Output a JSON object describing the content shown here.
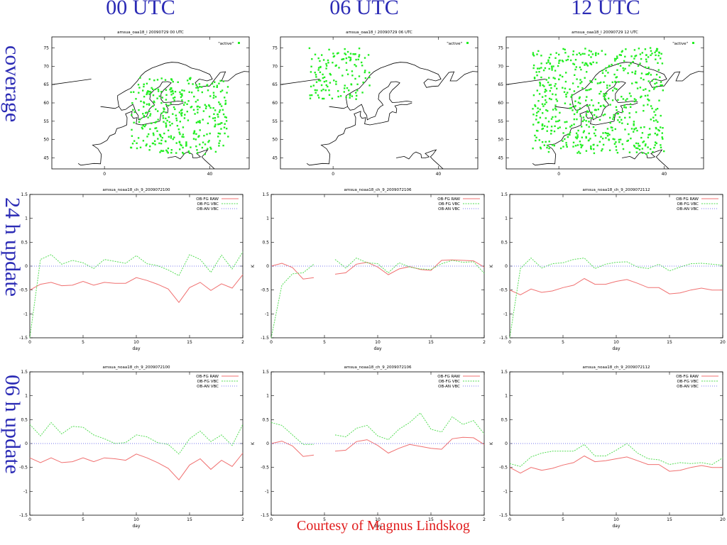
{
  "columns": [
    "00 UTC",
    "06 UTC",
    "12 UTC"
  ],
  "rows": [
    "coverage",
    "24 h update",
    "06 h update"
  ],
  "credit": "Courtesy of Magnus Lindskog",
  "colors": {
    "heading": "#2b2bb5",
    "credit": "#e01b1b",
    "raw": "#f07070",
    "vbc": "#55dd55",
    "an": "#7777ee",
    "coast": "#000000",
    "points": "#22ee22"
  },
  "chart_data": [
    {
      "type": "scatter",
      "title": "amsua_oaa18_l 20090729 00 UTC",
      "legend": "\"active\"",
      "legend_position": "top-right",
      "xticks": [
        "0",
        "40"
      ],
      "yticks": [
        "45",
        "50",
        "55",
        "60",
        "65",
        "70",
        "75"
      ],
      "xlim": [
        -20,
        55
      ],
      "ylim": [
        42,
        78
      ],
      "region": {
        "lon": [
          10,
          47
        ],
        "lat": [
          46,
          67
        ]
      },
      "n_points": 360
    },
    {
      "type": "scatter",
      "title": "amsua_oaa18_l 20090729 06 UTC",
      "legend": "\"active\"",
      "legend_position": "top-right",
      "xticks": [
        "0",
        "40"
      ],
      "yticks": [
        "45",
        "50",
        "55",
        "60",
        "65",
        "70",
        "75"
      ],
      "xlim": [
        -20,
        55
      ],
      "ylim": [
        42,
        78
      ],
      "region": {
        "lon": [
          -9,
          14
        ],
        "lat": [
          61,
          75
        ]
      },
      "n_points": 130
    },
    {
      "type": "scatter",
      "title": "amsua_oaa18_l 20090729 12 UTC",
      "legend": "\"active\"",
      "legend_position": "top-right",
      "xticks": [
        "0",
        "40"
      ],
      "yticks": [
        "45",
        "50",
        "55",
        "60",
        "65",
        "70",
        "75"
      ],
      "xlim": [
        -20,
        55
      ],
      "ylim": [
        42,
        78
      ],
      "region": {
        "lon": [
          -10,
          40
        ],
        "lat": [
          46,
          75
        ]
      },
      "n_points": 620
    },
    {
      "type": "line",
      "title": "amsua_noaa18_ch_9_2009072100",
      "xlabel": "day",
      "ylabel": "",
      "xlim": [
        0,
        20
      ],
      "ylim": [
        -1.5,
        1.5
      ],
      "xticks": [
        "0",
        "5",
        "10",
        "15",
        "2"
      ],
      "yticks": [
        "1.5",
        "1",
        "0.5",
        "0",
        "-0.5",
        "-1",
        "-1.5"
      ],
      "legend_position": "top-right",
      "series": [
        {
          "name": "OB-FG RAW",
          "x": [
            0,
            1,
            2,
            3,
            4,
            5,
            6,
            7,
            8,
            9,
            10,
            11,
            12,
            13,
            14,
            15,
            16,
            17,
            18,
            19,
            20
          ],
          "y": [
            -0.5,
            -0.38,
            -0.34,
            -0.41,
            -0.4,
            -0.32,
            -0.4,
            -0.34,
            -0.36,
            -0.36,
            -0.24,
            -0.3,
            -0.38,
            -0.48,
            -0.76,
            -0.45,
            -0.34,
            -0.51,
            -0.37,
            -0.46,
            -0.18
          ]
        },
        {
          "name": "OB-FG VBC",
          "x": [
            0,
            1,
            2,
            3,
            4,
            5,
            6,
            7,
            8,
            9,
            10,
            11,
            12,
            13,
            14,
            15,
            16,
            17,
            18,
            19,
            20
          ],
          "y": [
            -1.5,
            0.14,
            0.24,
            0.04,
            0.12,
            0.07,
            -0.05,
            0.14,
            0.1,
            0.06,
            0.22,
            0.05,
            0.01,
            -0.08,
            -0.2,
            0.24,
            0.14,
            -0.13,
            0.23,
            -0.06,
            0.3
          ]
        },
        {
          "name": "OB-AN VBC",
          "x": [
            0,
            20
          ],
          "y": [
            0,
            0
          ]
        }
      ]
    },
    {
      "type": "line",
      "title": "amsua_noaa18_ch_9_2009072106",
      "xlabel": "day",
      "ylabel": "K",
      "xlim": [
        0,
        20
      ],
      "ylim": [
        -1.5,
        1.5
      ],
      "xticks": [
        "0",
        "5",
        "10",
        "15",
        "2"
      ],
      "yticks": [
        "1.5",
        "1",
        "0.5",
        "0",
        "-0.5",
        "-1",
        "-1.5"
      ],
      "legend_position": "top-right",
      "series": [
        {
          "name": "OB-FG RAW",
          "x": [
            0,
            1,
            2,
            3,
            4,
            null,
            6,
            7,
            8,
            9,
            10,
            11,
            12,
            13,
            14,
            15,
            16,
            17,
            18,
            19,
            20
          ],
          "y": [
            0,
            0.06,
            -0.03,
            -0.27,
            -0.24,
            null,
            -0.17,
            -0.14,
            0.04,
            0.08,
            -0.02,
            -0.18,
            -0.06,
            -0.01,
            -0.07,
            -0.09,
            0.12,
            0.13,
            0.12,
            0.11,
            -0.02
          ]
        },
        {
          "name": "OB-FG VBC",
          "x": [
            0,
            1,
            2,
            3,
            4,
            null,
            6,
            7,
            8,
            9,
            10,
            11,
            12,
            13,
            14,
            15,
            16,
            17,
            18,
            19,
            20
          ],
          "y": [
            -1.5,
            -0.4,
            -0.16,
            -0.14,
            0.04,
            null,
            0.14,
            -0.04,
            0.17,
            0.07,
            0.05,
            -0.14,
            0.07,
            -0.02,
            -0.06,
            -0.07,
            0.05,
            0.12,
            0.08,
            0.09,
            -0.15
          ]
        },
        {
          "name": "OB-AN VBC",
          "x": [
            0,
            20
          ],
          "y": [
            0,
            0
          ]
        }
      ]
    },
    {
      "type": "line",
      "title": "amsua_noaa18_ch_9_2009072112",
      "xlabel": "day",
      "ylabel": "K",
      "xlim": [
        0,
        20
      ],
      "ylim": [
        -1.5,
        1.5
      ],
      "xticks": [
        "0",
        "5",
        "10",
        "15",
        "20"
      ],
      "yticks": [
        "1.5",
        "1",
        "0.5",
        "0",
        "-0.5",
        "-1",
        "-1.5"
      ],
      "legend_position": "top-right",
      "series": [
        {
          "name": "OB-FG RAW",
          "x": [
            0,
            1,
            2,
            3,
            4,
            5,
            6,
            7,
            8,
            9,
            10,
            11,
            12,
            13,
            14,
            15,
            16,
            17,
            18,
            19,
            20
          ],
          "y": [
            -0.5,
            -0.6,
            -0.48,
            -0.55,
            -0.52,
            -0.45,
            -0.4,
            -0.26,
            -0.38,
            -0.38,
            -0.32,
            -0.28,
            -0.36,
            -0.45,
            -0.45,
            -0.58,
            -0.56,
            -0.5,
            -0.46,
            -0.5,
            -0.5
          ]
        },
        {
          "name": "OB-FG VBC",
          "x": [
            0,
            1,
            2,
            3,
            4,
            5,
            6,
            7,
            8,
            9,
            10,
            11,
            12,
            13,
            14,
            15,
            16,
            17,
            18,
            19,
            20
          ],
          "y": [
            -1.5,
            -0.05,
            0.17,
            -0.04,
            0.05,
            0.07,
            0.14,
            0.17,
            -0.05,
            0.04,
            0.08,
            0.09,
            -0.02,
            -0.05,
            0.04,
            -0.1,
            -0.02,
            0.05,
            0.06,
            0.04,
            0.02
          ]
        },
        {
          "name": "OB-AN VBC",
          "x": [
            0,
            20
          ],
          "y": [
            0,
            0
          ]
        }
      ]
    },
    {
      "type": "line",
      "title": "amsua_noaa18_ch_9_2009072100",
      "xlabel": "day",
      "ylabel": "",
      "xlim": [
        0,
        20
      ],
      "ylim": [
        -1.5,
        1.5
      ],
      "xticks": [
        "0",
        "5",
        "10",
        "15",
        "2"
      ],
      "yticks": [
        "1.5",
        "1",
        "0.5",
        "0",
        "-0.5",
        "-1",
        "-1.5"
      ],
      "legend_position": "top-right",
      "series": [
        {
          "name": "OB-FG RAW",
          "x": [
            0,
            1,
            2,
            3,
            4,
            5,
            6,
            7,
            8,
            9,
            10,
            11,
            12,
            13,
            14,
            15,
            16,
            17,
            18,
            19,
            20
          ],
          "y": [
            -0.3,
            -0.4,
            -0.3,
            -0.4,
            -0.38,
            -0.3,
            -0.38,
            -0.3,
            -0.32,
            -0.35,
            -0.22,
            -0.3,
            -0.4,
            -0.52,
            -0.76,
            -0.45,
            -0.32,
            -0.54,
            -0.35,
            -0.48,
            -0.2
          ]
        },
        {
          "name": "OB-FG VBC",
          "x": [
            0,
            1,
            2,
            3,
            4,
            5,
            6,
            7,
            8,
            9,
            10,
            11,
            12,
            13,
            14,
            15,
            16,
            17,
            18,
            19,
            20
          ],
          "y": [
            0.4,
            0.16,
            0.44,
            0.2,
            0.36,
            0.34,
            0.18,
            0.1,
            0,
            0.02,
            0.18,
            0.14,
            0.02,
            -0.02,
            -0.22,
            0.1,
            0.26,
            0.04,
            0.18,
            -0.04,
            0.4
          ]
        },
        {
          "name": "OB-AN VBC",
          "x": [
            0,
            20
          ],
          "y": [
            0,
            0
          ]
        }
      ]
    },
    {
      "type": "line",
      "title": "amsua_noaa18_ch_9_2009072106",
      "xlabel": "day",
      "ylabel": "K",
      "xlim": [
        0,
        20
      ],
      "ylim": [
        -1.5,
        1.5
      ],
      "xticks": [
        "0",
        "5",
        "10",
        "15",
        "2"
      ],
      "yticks": [
        "1.5",
        "1",
        "0.5",
        "0",
        "-0.5",
        "-1",
        "-1.5"
      ],
      "legend_position": "top-right",
      "series": [
        {
          "name": "OB-FG RAW",
          "x": [
            0,
            1,
            2,
            3,
            4,
            null,
            6,
            7,
            8,
            9,
            10,
            11,
            12,
            13,
            14,
            15,
            16,
            17,
            18,
            19,
            20
          ],
          "y": [
            0,
            0.05,
            -0.05,
            -0.27,
            -0.24,
            null,
            -0.16,
            -0.14,
            0.04,
            0.08,
            -0.04,
            -0.2,
            -0.1,
            -0.02,
            -0.06,
            -0.1,
            -0.12,
            0.1,
            0.13,
            0.12,
            -0.02
          ]
        },
        {
          "name": "OB-FG VBC",
          "x": [
            0,
            1,
            2,
            3,
            4,
            null,
            6,
            7,
            8,
            9,
            10,
            11,
            12,
            13,
            14,
            15,
            16,
            17,
            18,
            19,
            20
          ],
          "y": [
            0.44,
            0.38,
            0.18,
            -0.02,
            -0.02,
            null,
            0.18,
            0.14,
            0.32,
            0.38,
            0.16,
            0.08,
            0.3,
            0.44,
            0.64,
            0.3,
            0.24,
            0.56,
            0.4,
            0.48,
            0.2
          ]
        },
        {
          "name": "OB-AN VBC",
          "x": [
            0,
            20
          ],
          "y": [
            0,
            0
          ]
        }
      ]
    },
    {
      "type": "line",
      "title": "amsua_noaa18_ch_9_2009072112",
      "xlabel": "day",
      "ylabel": "K",
      "xlim": [
        0,
        20
      ],
      "ylim": [
        -1.5,
        1.5
      ],
      "xticks": [
        "0",
        "5",
        "10",
        "15",
        "20"
      ],
      "yticks": [
        "1.5",
        "1",
        "0.5",
        "0",
        "-0.5",
        "-1",
        "-1.5"
      ],
      "legend_position": "top-right",
      "series": [
        {
          "name": "OB-FG RAW",
          "x": [
            0,
            1,
            2,
            3,
            4,
            5,
            6,
            7,
            8,
            9,
            10,
            11,
            12,
            13,
            14,
            15,
            16,
            17,
            18,
            19,
            20
          ],
          "y": [
            -0.5,
            -0.62,
            -0.5,
            -0.56,
            -0.52,
            -0.45,
            -0.4,
            -0.26,
            -0.38,
            -0.36,
            -0.32,
            -0.28,
            -0.36,
            -0.44,
            -0.44,
            -0.58,
            -0.56,
            -0.5,
            -0.46,
            -0.5,
            -0.5
          ]
        },
        {
          "name": "OB-FG VBC",
          "x": [
            0,
            1,
            2,
            3,
            4,
            5,
            6,
            7,
            8,
            9,
            10,
            11,
            12,
            13,
            14,
            15,
            16,
            17,
            18,
            19,
            20
          ],
          "y": [
            -0.42,
            -0.48,
            -0.28,
            -0.2,
            -0.16,
            -0.16,
            -0.16,
            -0.02,
            -0.26,
            -0.26,
            -0.14,
            0,
            -0.2,
            -0.32,
            -0.34,
            -0.44,
            -0.4,
            -0.42,
            -0.4,
            -0.44,
            -0.3
          ]
        },
        {
          "name": "OB-AN VBC",
          "x": [
            0,
            20
          ],
          "y": [
            0,
            0
          ]
        }
      ]
    }
  ]
}
